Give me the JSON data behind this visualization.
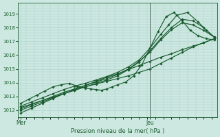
{
  "bg_color": "#cce8e0",
  "grid_color": "#a8cfc8",
  "line_color": "#1a5c30",
  "vline_color": "#4a6a5a",
  "xlabel": "Pression niveau de la mer( hPa )",
  "xtick_labels": [
    "Mer",
    "Jeu"
  ],
  "xtick_pos": [
    0,
    48
  ],
  "vline_x": 48,
  "xlim": [
    -1,
    73
  ],
  "ylim": [
    1011.5,
    1019.7
  ],
  "yticks": [
    1012,
    1013,
    1014,
    1015,
    1016,
    1017,
    1018,
    1019
  ],
  "series": [
    {
      "x": [
        0,
        4,
        8,
        12,
        16,
        20,
        24,
        28,
        32,
        36,
        40,
        44,
        48,
        52,
        56,
        60,
        64,
        68,
        72
      ],
      "y": [
        1011.8,
        1012.15,
        1012.5,
        1012.85,
        1013.2,
        1013.5,
        1013.8,
        1014.1,
        1014.4,
        1014.65,
        1014.95,
        1015.25,
        1015.55,
        1015.85,
        1016.1,
        1016.4,
        1016.65,
        1016.9,
        1017.2
      ]
    },
    {
      "x": [
        0,
        4,
        8,
        12,
        16,
        20,
        24,
        28,
        32,
        36,
        40,
        44,
        48,
        52,
        56,
        60,
        64,
        68,
        72
      ],
      "y": [
        1012.2,
        1012.45,
        1012.7,
        1012.95,
        1013.2,
        1013.45,
        1013.7,
        1013.9,
        1014.1,
        1014.3,
        1014.5,
        1014.75,
        1015.0,
        1015.4,
        1015.8,
        1016.2,
        1016.6,
        1016.9,
        1017.2
      ]
    },
    {
      "x": [
        0,
        3,
        6,
        9,
        12,
        15,
        18,
        21,
        24,
        26,
        28,
        30,
        32,
        34,
        36,
        39,
        42,
        45,
        48,
        51,
        54,
        57,
        60,
        63,
        66,
        69,
        72
      ],
      "y": [
        1012.5,
        1012.8,
        1013.1,
        1013.4,
        1013.7,
        1013.85,
        1013.95,
        1013.75,
        1013.6,
        1013.55,
        1013.5,
        1013.45,
        1013.55,
        1013.7,
        1013.85,
        1014.05,
        1014.5,
        1015.3,
        1016.5,
        1017.7,
        1018.8,
        1019.1,
        1018.5,
        1017.8,
        1017.4,
        1017.2,
        1017.1
      ]
    },
    {
      "x": [
        0,
        4,
        8,
        12,
        16,
        20,
        24,
        28,
        32,
        36,
        40,
        44,
        48,
        52,
        55,
        58,
        62,
        66,
        69,
        72
      ],
      "y": [
        1012.3,
        1012.6,
        1012.9,
        1013.2,
        1013.5,
        1013.75,
        1013.95,
        1014.2,
        1014.45,
        1014.75,
        1015.15,
        1015.65,
        1016.5,
        1017.5,
        1018.2,
        1018.9,
        1019.1,
        1018.4,
        1017.8,
        1017.3
      ]
    },
    {
      "x": [
        0,
        4,
        8,
        12,
        16,
        20,
        24,
        28,
        32,
        36,
        40,
        44,
        48,
        52,
        56,
        60,
        64,
        68,
        72
      ],
      "y": [
        1012.1,
        1012.4,
        1012.7,
        1013.0,
        1013.3,
        1013.55,
        1013.8,
        1014.05,
        1014.3,
        1014.6,
        1015.0,
        1015.55,
        1016.2,
        1017.1,
        1017.85,
        1018.35,
        1018.2,
        1017.8,
        1017.3
      ]
    },
    {
      "x": [
        0,
        4,
        8,
        12,
        16,
        20,
        24,
        28,
        32,
        36,
        40,
        44,
        48,
        52,
        56,
        60,
        64,
        68,
        72
      ],
      "y": [
        1012.0,
        1012.3,
        1012.6,
        1012.9,
        1013.2,
        1013.45,
        1013.7,
        1013.95,
        1014.2,
        1014.5,
        1014.95,
        1015.5,
        1016.3,
        1017.2,
        1018.0,
        1018.6,
        1018.5,
        1018.0,
        1017.3
      ]
    }
  ],
  "marker": "D",
  "marker_size": 1.8,
  "linewidth": 0.85
}
